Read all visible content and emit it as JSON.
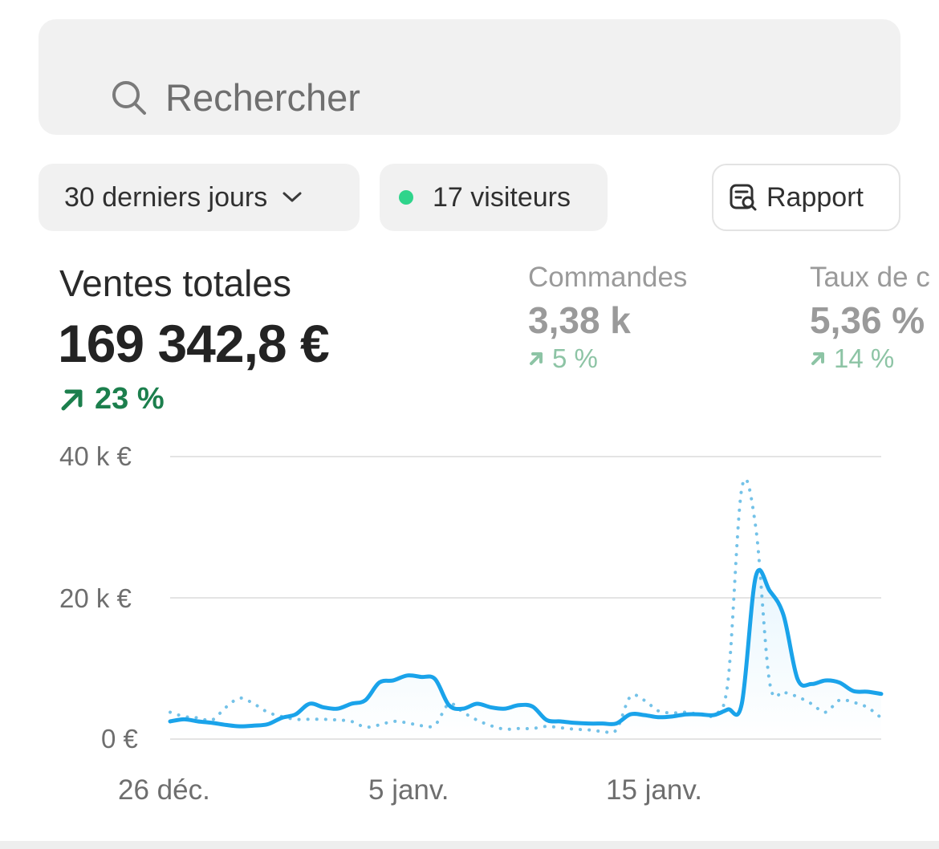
{
  "search": {
    "placeholder": "Rechercher",
    "icon": "search-icon"
  },
  "filters": {
    "range_label": "30 derniers jours",
    "visitors_label": "17 visiteurs",
    "visitors_dot_color": "#2fd48b",
    "report_label": "Rapport"
  },
  "metrics": {
    "main": {
      "title": "Ventes totales",
      "value": "169 342,8 €",
      "change": "23 %",
      "color": "#1c7f4d"
    },
    "secondary": [
      {
        "title": "Commandes",
        "value": "3,38 k",
        "change": "5 %"
      },
      {
        "title": "Taux de c",
        "value": "5,36 %",
        "change": "14 %"
      }
    ]
  },
  "chart_data": {
    "type": "line",
    "y_ticks": [
      "40 k €",
      "20 k €",
      "0 €"
    ],
    "x_ticks": [
      "26 déc.",
      "5 janv.",
      "15 janv."
    ],
    "ylim": [
      0,
      40000
    ],
    "grid": true,
    "series": [
      {
        "style": "solid",
        "color": "#1aa3ea",
        "values": [
          2500,
          2800,
          2500,
          2300,
          2000,
          1800,
          1900,
          2100,
          3000,
          3500,
          5000,
          4500,
          4300,
          5000,
          5500,
          8000,
          8300,
          9000,
          8800,
          8500,
          4800,
          4300,
          5000,
          4500,
          4300,
          4800,
          4600,
          2700,
          2500,
          2300,
          2200,
          2200,
          2200,
          3500,
          3400,
          3100,
          3200,
          3500,
          3500,
          3400,
          4200,
          5000,
          23000,
          21000,
          17500,
          8500,
          7800,
          8300,
          8000,
          6800,
          6700,
          6400
        ]
      },
      {
        "style": "dotted",
        "color": "#74c2e8",
        "values": [
          3800,
          3200,
          3000,
          2700,
          4500,
          5800,
          5000,
          3800,
          3200,
          2800,
          2800,
          2800,
          2700,
          2500,
          1700,
          2000,
          2500,
          2300,
          1900,
          2000,
          5000,
          3800,
          2700,
          1900,
          1400,
          1500,
          1500,
          1800,
          1600,
          1400,
          1300,
          1100,
          1300,
          6000,
          5500,
          4000,
          3700,
          3800,
          3500,
          3500,
          8000,
          35500,
          30000,
          8000,
          6700,
          6000,
          5000,
          3800,
          5500,
          5200,
          4500,
          3000
        ]
      }
    ]
  }
}
